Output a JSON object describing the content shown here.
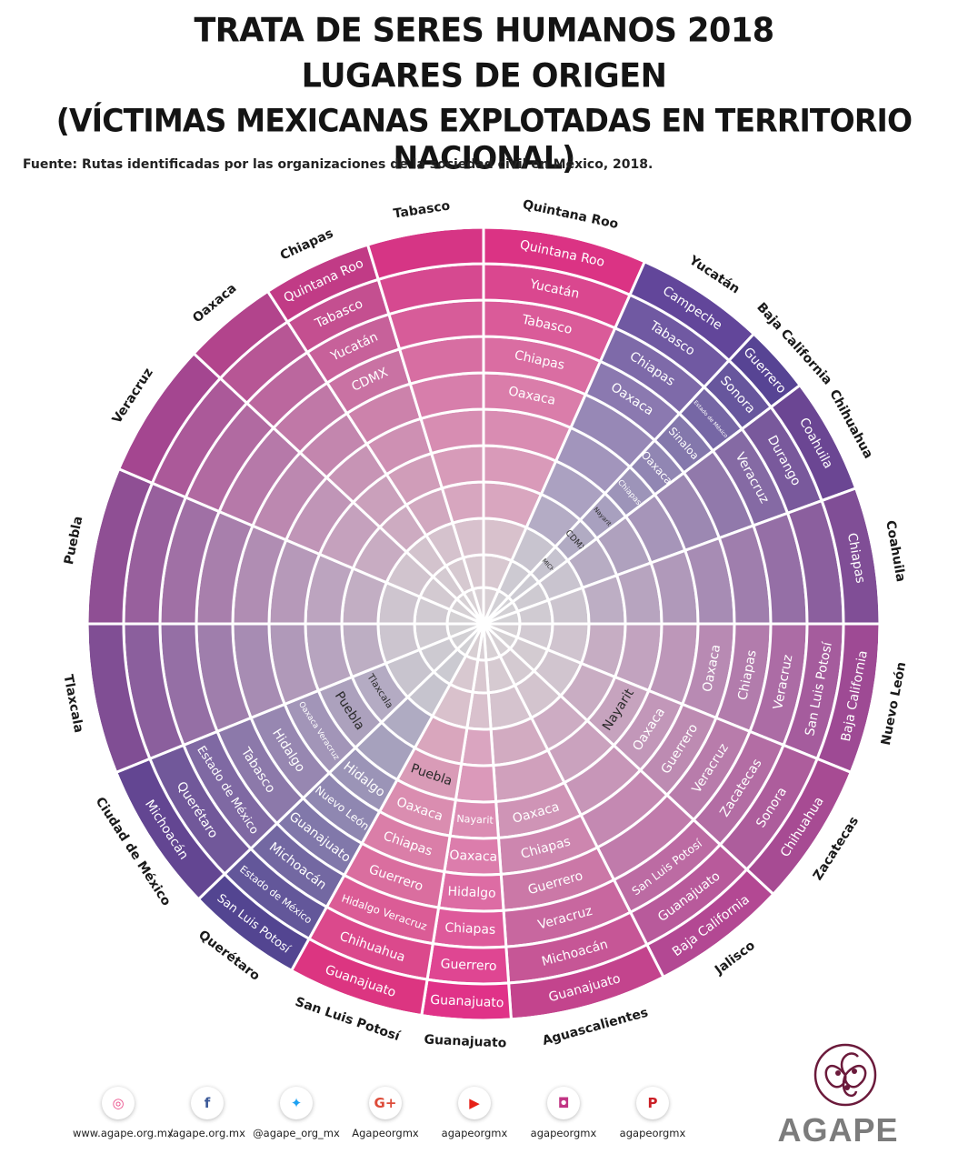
{
  "title": {
    "line1": "TRATA DE SERES HUMANOS 2018",
    "line2": "LUGARES DE ORIGEN",
    "line3": "(VÍCTIMAS MEXICANAS EXPLOTADAS EN TERRITORIO NACIONAL)"
  },
  "source": "Fuente: Rutas identificadas por las organizaciones de la sociedad civil en México, 2018.",
  "colors": {
    "center": "#d8d8d8",
    "white": "#ffffff"
  },
  "wheel": {
    "sectors": [
      {
        "destination": "Quintana Roo",
        "color": "#db287f",
        "origins": [
          "Quintana Roo",
          "Yucatán",
          "Tabasco",
          "Chiapas",
          "Oaxaca"
        ]
      },
      {
        "destination": "Yucatán",
        "color": "#5a3d96",
        "origins": [
          "Campeche",
          "Tabasco",
          "Chiapas",
          "Oaxaca"
        ]
      },
      {
        "destination": "Baja California",
        "color": "#4f3a90",
        "origins": [
          "Guerrero",
          "Sonora",
          "Estado de México",
          "Sinaloa",
          "Oaxaca",
          "Chiapas",
          "Nayarit",
          "CDMX",
          "MICH"
        ]
      },
      {
        "destination": "Chihuahua",
        "color": "#643d8f",
        "origins": [
          "Coahuila",
          "Durango",
          "Veracruz"
        ]
      },
      {
        "destination": "Coahuila",
        "color": "#7a4592",
        "origins": [
          "Chiapas"
        ]
      },
      {
        "destination": "Nuevo León",
        "color": "#9a4190",
        "origins": [
          "Baja California",
          "San Luis Potosí",
          "Veracruz",
          "Chiapas",
          "Oaxaca"
        ]
      },
      {
        "destination": "Zacatecas",
        "color": "#a4428f",
        "origins": [
          "Chihuahua",
          "Sonora",
          "Zacatecas",
          "Veracruz",
          "Guerrero",
          "Oaxaca",
          "Nayarit"
        ]
      },
      {
        "destination": "Jalisco",
        "color": "#b13f8e",
        "origins": [
          "Baja California",
          "Guanajuato",
          "San Luis Potosí"
        ]
      },
      {
        "destination": "Aguascalientes",
        "color": "#c23a88",
        "origins": [
          "Guanajuato",
          "Michoacán",
          "Veracruz",
          "Guerrero",
          "Chiapas",
          "Oaxaca"
        ]
      },
      {
        "destination": "Guanajuato",
        "color": "#e02783",
        "origins": [
          "Guanajuato",
          "Guerrero",
          "Chiapas",
          "Hidalgo",
          "Oaxaca",
          "Nayarit"
        ]
      },
      {
        "destination": "San Luis Potosí",
        "color": "#dc2a7b",
        "origins": [
          "Guanajuato",
          "Chihuahua",
          "Hidalgo Veracruz",
          "Guerrero",
          "Chiapas",
          "Oaxaca",
          "Puebla"
        ]
      },
      {
        "destination": "Querétaro",
        "color": "#4a3b8c",
        "origins": [
          "San Luis Potosí",
          "Estado de México",
          "Michoacán",
          "Guanajuato",
          "Nuevo León",
          "Hidalgo"
        ]
      },
      {
        "destination": "Ciudad de México",
        "color": "#5b3c8d",
        "origins": [
          "Michoacán",
          "Querétaro",
          "Estado de México",
          "Tabasco",
          "Hidalgo",
          "Oaxaca Veracruz",
          "Puebla",
          "Tlaxcala"
        ]
      },
      {
        "destination": "Tlaxcala",
        "color": "#7a4590",
        "origins": []
      },
      {
        "destination": "Puebla",
        "color": "#8a4690",
        "origins": []
      },
      {
        "destination": "Veracruz",
        "color": "#a13d8b",
        "origins": []
      },
      {
        "destination": "Oaxaca",
        "color": "#b03a87",
        "origins": []
      },
      {
        "destination": "Chiapas",
        "color": "#c03181",
        "origins": [
          "Quintana Roo",
          "Tabasco",
          "Yucatán",
          "CDMX"
        ]
      },
      {
        "destination": "Tabasco",
        "color": "#d62a80",
        "origins": []
      }
    ]
  },
  "social": [
    {
      "icon": "dribbble-icon",
      "glyph": "◎",
      "color": "#ea4c89",
      "label": "www.agape.org.mx"
    },
    {
      "icon": "facebook-icon",
      "glyph": "f",
      "color": "#3b5998",
      "label": "/agape.org.mx"
    },
    {
      "icon": "twitter-icon",
      "glyph": "✦",
      "color": "#1da1f2",
      "label": "@agape_org_mx"
    },
    {
      "icon": "google-plus-icon",
      "glyph": "G+",
      "color": "#dd4b39",
      "label": "Agapeorgmx"
    },
    {
      "icon": "youtube-icon",
      "glyph": "▶",
      "color": "#e62117",
      "label": "agapeorgmx"
    },
    {
      "icon": "instagram-icon",
      "glyph": "◘",
      "color": "#c13584",
      "label": "agapeorgmx"
    },
    {
      "icon": "pinterest-icon",
      "glyph": "P",
      "color": "#cb2027",
      "label": "agapeorgmx"
    }
  ],
  "logo": {
    "text": "AGAPE",
    "color": "#6b1a3b"
  }
}
